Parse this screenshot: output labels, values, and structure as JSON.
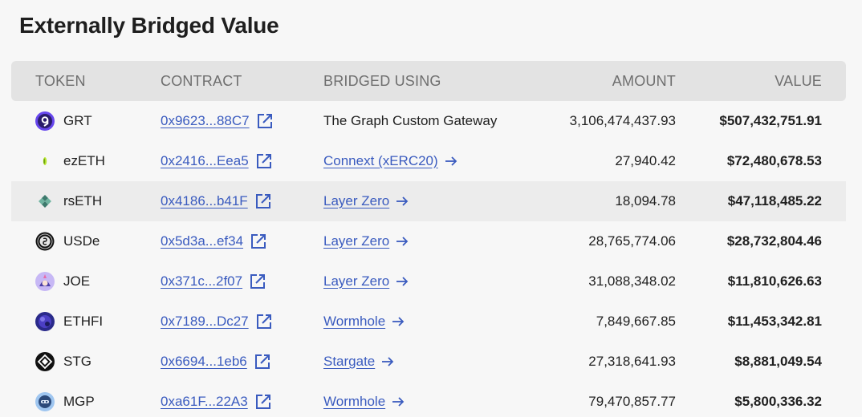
{
  "page": {
    "title": "Externally Bridged Value"
  },
  "table": {
    "columns": {
      "token": "TOKEN",
      "contract": "CONTRACT",
      "bridged_using": "BRIDGED USING",
      "amount": "AMOUNT",
      "value": "VALUE"
    },
    "rows": [
      {
        "token": "GRT",
        "icon": "grt-icon",
        "contract": "0x9623...88C7",
        "bridge": "The Graph Custom Gateway",
        "bridge_link": false,
        "amount": "3,106,474,437.93",
        "value": "$507,432,751.91"
      },
      {
        "token": "ezETH",
        "icon": "ezeth-icon",
        "contract": "0x2416...Eea5",
        "bridge": "Connext (xERC20)",
        "bridge_link": true,
        "amount": "27,940.42",
        "value": "$72,480,678.53"
      },
      {
        "token": "rsETH",
        "icon": "rseth-icon",
        "contract": "0x4186...b41F",
        "bridge": "Layer Zero",
        "bridge_link": true,
        "amount": "18,094.78",
        "value": "$47,118,485.22"
      },
      {
        "token": "USDe",
        "icon": "usde-icon",
        "contract": "0x5d3a...ef34",
        "bridge": "Layer Zero",
        "bridge_link": true,
        "amount": "28,765,774.06",
        "value": "$28,732,804.46"
      },
      {
        "token": "JOE",
        "icon": "joe-icon",
        "contract": "0x371c...2f07",
        "bridge": "Layer Zero",
        "bridge_link": true,
        "amount": "31,088,348.02",
        "value": "$11,810,626.63"
      },
      {
        "token": "ETHFI",
        "icon": "ethfi-icon",
        "contract": "0x7189...Dc27",
        "bridge": "Wormhole",
        "bridge_link": true,
        "amount": "7,849,667.85",
        "value": "$11,453,342.81"
      },
      {
        "token": "STG",
        "icon": "stg-icon",
        "contract": "0x6694...1eb6",
        "bridge": "Stargate",
        "bridge_link": true,
        "amount": "27,318,641.93",
        "value": "$8,881,049.54"
      },
      {
        "token": "MGP",
        "icon": "mgp-icon",
        "contract": "0xa61F...22A3",
        "bridge": "Wormhole",
        "bridge_link": true,
        "amount": "79,470,857.77",
        "value": "$5,800,336.32"
      }
    ]
  },
  "colors": {
    "link": "#3a5bbf",
    "header_bg": "#e3e3e3",
    "row_highlight": "#ececec"
  }
}
